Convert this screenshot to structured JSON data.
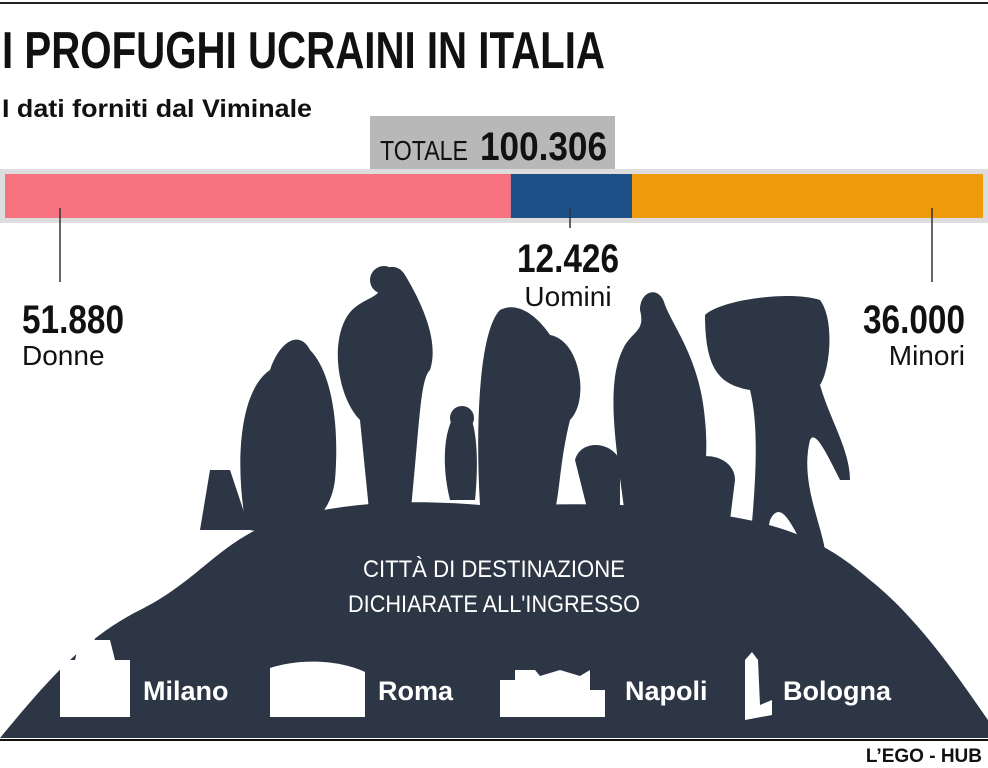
{
  "chart_data": {
    "type": "stacked-bar",
    "title": "I PROFUGHI UCRAINI IN ITALIA",
    "subtitle": "I dati forniti dal Viminale",
    "total": {
      "label": "TOTALE",
      "value": 100306,
      "value_label": "100.306"
    },
    "categories": [
      "Donne",
      "Uomini",
      "Minori"
    ],
    "values": [
      51880,
      12426,
      36000
    ],
    "value_labels": [
      "51.880",
      "12.426",
      "36.000"
    ],
    "colors": [
      "#f7727f",
      "#1c5086",
      "#ef9a0a"
    ],
    "destinations": {
      "heading": [
        "CITTÀ DI DESTINAZIONE",
        "DICHIARATE ALL'INGRESSO"
      ],
      "cities": [
        "Milano",
        "Roma",
        "Napoli",
        "Bologna"
      ]
    },
    "source": "L’EGO - HUB"
  }
}
